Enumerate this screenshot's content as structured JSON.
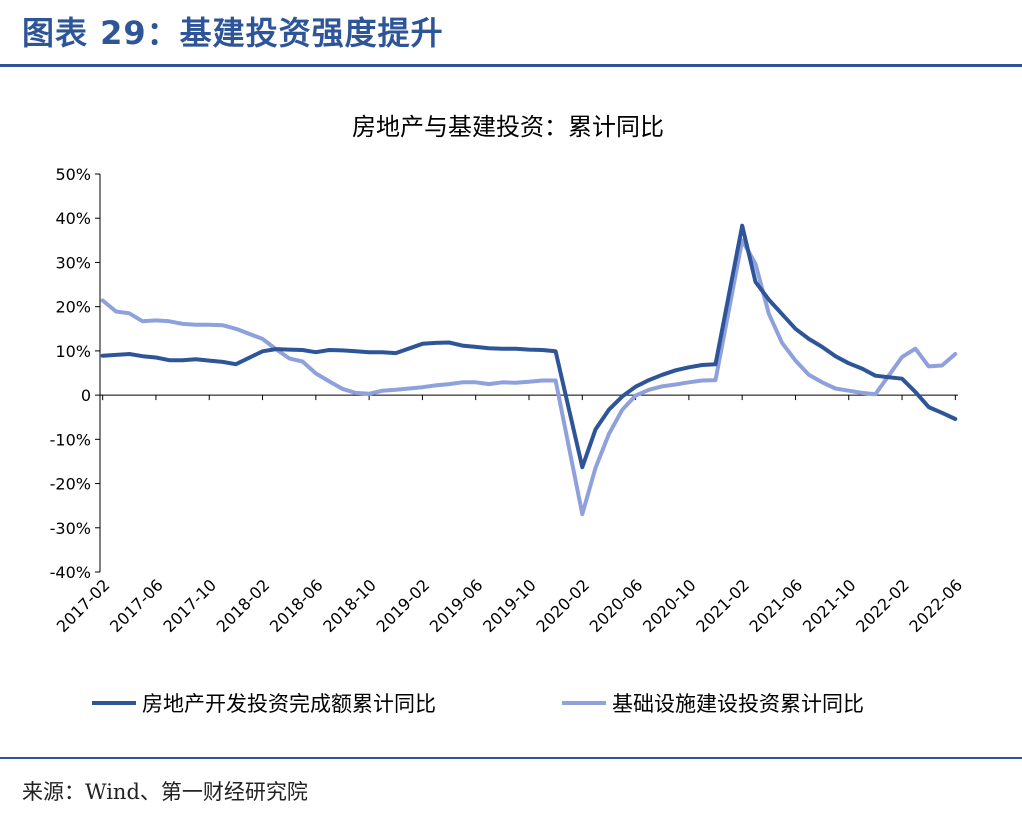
{
  "header": {
    "figure_title": "图表 29：基建投资强度提升"
  },
  "footer": {
    "source": "来源：Wind、第一财经研究院"
  },
  "colors": {
    "real_estate": "#2e5597",
    "infrastructure": "#8ea1dc",
    "accent": "#2e5597"
  },
  "chart_data": {
    "type": "line",
    "title": "房地产与基建投资：累计同比",
    "ylim": [
      -40,
      50
    ],
    "yticks": [
      -40,
      -30,
      -20,
      -10,
      0,
      10,
      20,
      30,
      40,
      50
    ],
    "ytick_labels": [
      "-40%",
      "-30%",
      "-20%",
      "-10%",
      "0",
      "10%",
      "20%",
      "30%",
      "40%",
      "50%"
    ],
    "x_tick_labels": [
      "2017-02",
      "2017-06",
      "2017-10",
      "2018-02",
      "2018-06",
      "2018-10",
      "2019-02",
      "2019-06",
      "2019-10",
      "2020-02",
      "2020-06",
      "2020-10",
      "2021-02",
      "2021-06",
      "2021-10",
      "2022-02",
      "2022-06"
    ],
    "grid": false,
    "legend_position": "bottom",
    "series": [
      {
        "name": "房地产开发投资完成额累计同比",
        "color": "#2e5597",
        "x": [
          "2017-02",
          "2017-03",
          "2017-04",
          "2017-05",
          "2017-06",
          "2017-07",
          "2017-08",
          "2017-09",
          "2017-10",
          "2017-11",
          "2017-12",
          "2018-02",
          "2018-03",
          "2018-04",
          "2018-05",
          "2018-06",
          "2018-07",
          "2018-08",
          "2018-09",
          "2018-10",
          "2018-11",
          "2018-12",
          "2019-02",
          "2019-03",
          "2019-04",
          "2019-05",
          "2019-06",
          "2019-07",
          "2019-08",
          "2019-09",
          "2019-10",
          "2019-11",
          "2019-12",
          "2020-02",
          "2020-03",
          "2020-04",
          "2020-05",
          "2020-06",
          "2020-07",
          "2020-08",
          "2020-09",
          "2020-10",
          "2020-11",
          "2020-12",
          "2021-02",
          "2021-03",
          "2021-04",
          "2021-05",
          "2021-06",
          "2021-07",
          "2021-08",
          "2021-09",
          "2021-10",
          "2021-11",
          "2021-12",
          "2022-02",
          "2022-03",
          "2022-04",
          "2022-05",
          "2022-06"
        ],
        "values": [
          8.9,
          9.1,
          9.3,
          8.8,
          8.5,
          7.9,
          7.9,
          8.1,
          7.8,
          7.5,
          7.0,
          9.9,
          10.4,
          10.3,
          10.2,
          9.7,
          10.2,
          10.1,
          9.9,
          9.7,
          9.7,
          9.5,
          11.6,
          11.8,
          11.9,
          11.2,
          10.9,
          10.6,
          10.5,
          10.5,
          10.3,
          10.2,
          9.9,
          -16.3,
          -7.7,
          -3.3,
          -0.3,
          1.9,
          3.4,
          4.6,
          5.6,
          6.3,
          6.8,
          7.0,
          38.3,
          25.6,
          21.6,
          18.3,
          15.0,
          12.7,
          10.9,
          8.8,
          7.2,
          6.0,
          4.4,
          3.7,
          0.7,
          -2.7,
          -4.0,
          -5.4
        ]
      },
      {
        "name": "基础设施建设投资累计同比",
        "color": "#8ea1dc",
        "x": [
          "2017-02",
          "2017-03",
          "2017-04",
          "2017-05",
          "2017-06",
          "2017-07",
          "2017-08",
          "2017-09",
          "2017-10",
          "2017-11",
          "2017-12",
          "2018-02",
          "2018-03",
          "2018-04",
          "2018-05",
          "2018-06",
          "2018-07",
          "2018-08",
          "2018-09",
          "2018-10",
          "2018-11",
          "2018-12",
          "2019-02",
          "2019-03",
          "2019-04",
          "2019-05",
          "2019-06",
          "2019-07",
          "2019-08",
          "2019-09",
          "2019-10",
          "2019-11",
          "2019-12",
          "2020-02",
          "2020-03",
          "2020-04",
          "2020-05",
          "2020-06",
          "2020-07",
          "2020-08",
          "2020-09",
          "2020-10",
          "2020-11",
          "2020-12",
          "2021-02",
          "2021-03",
          "2021-04",
          "2021-05",
          "2021-06",
          "2021-07",
          "2021-08",
          "2021-09",
          "2021-10",
          "2021-11",
          "2021-12",
          "2022-02",
          "2022-03",
          "2022-04",
          "2022-05",
          "2022-06"
        ],
        "values": [
          21.4,
          18.9,
          18.5,
          16.7,
          16.9,
          16.7,
          16.1,
          15.9,
          15.9,
          15.8,
          15.0,
          12.7,
          10.4,
          8.3,
          7.6,
          4.9,
          3.1,
          1.4,
          0.5,
          0.3,
          1.0,
          1.2,
          1.8,
          2.2,
          2.5,
          2.9,
          2.9,
          2.5,
          2.9,
          2.8,
          3.0,
          3.3,
          3.3,
          -26.9,
          -16.4,
          -8.8,
          -3.3,
          -0.1,
          1.2,
          2.0,
          2.4,
          2.9,
          3.3,
          3.4,
          35.0,
          29.7,
          18.4,
          11.8,
          7.8,
          4.6,
          2.9,
          1.5,
          1.0,
          0.5,
          0.2,
          8.6,
          10.5,
          6.5,
          6.7,
          9.3
        ]
      }
    ]
  }
}
